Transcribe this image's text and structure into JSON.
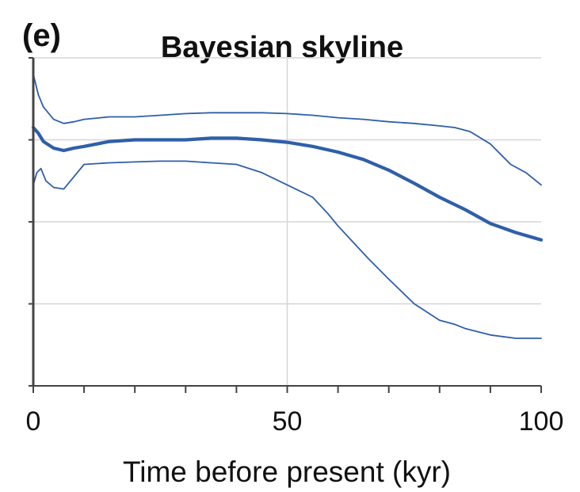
{
  "chart_data": {
    "type": "line",
    "panel_label": "(e)",
    "title": "Bayesian skyline",
    "xlabel": "Time before present (kyr)",
    "ylabel": "",
    "xlim": [
      0,
      100
    ],
    "ylim": [
      0,
      4
    ],
    "x_ticks": [
      0,
      50,
      100
    ],
    "x_minor_ticks": [
      10,
      20,
      30,
      40,
      60,
      70,
      80,
      90
    ],
    "y_ticks": [
      0,
      1,
      2,
      3,
      4
    ],
    "grid": true,
    "colors": {
      "series": "#2f5fa8",
      "grid": "#d6d6d6",
      "axis": "#444444"
    },
    "series": [
      {
        "role": "upper",
        "x": [
          0,
          1,
          2,
          4,
          6,
          8,
          10,
          15,
          20,
          25,
          30,
          35,
          40,
          45,
          50,
          55,
          60,
          65,
          70,
          75,
          80,
          83,
          86,
          90,
          94,
          97,
          100
        ],
        "y": [
          3.8,
          3.55,
          3.4,
          3.25,
          3.2,
          3.22,
          3.25,
          3.28,
          3.28,
          3.3,
          3.32,
          3.33,
          3.33,
          3.33,
          3.32,
          3.3,
          3.27,
          3.25,
          3.22,
          3.2,
          3.17,
          3.15,
          3.1,
          2.95,
          2.7,
          2.6,
          2.45
        ]
      },
      {
        "role": "median",
        "x": [
          0,
          1,
          2,
          4,
          6,
          8,
          10,
          15,
          20,
          25,
          30,
          35,
          40,
          45,
          50,
          55,
          60,
          65,
          70,
          75,
          80,
          85,
          90,
          95,
          100
        ],
        "y": [
          3.15,
          3.08,
          2.98,
          2.9,
          2.87,
          2.9,
          2.92,
          2.98,
          3.0,
          3.0,
          3.0,
          3.02,
          3.02,
          3.0,
          2.97,
          2.92,
          2.85,
          2.76,
          2.63,
          2.47,
          2.3,
          2.15,
          1.98,
          1.87,
          1.78
        ]
      },
      {
        "role": "lower",
        "x": [
          0,
          0.7,
          1.5,
          2.5,
          4,
          6,
          8,
          10,
          15,
          20,
          25,
          30,
          35,
          40,
          45,
          50,
          55,
          58,
          60,
          63,
          66,
          70,
          75,
          80,
          83,
          85,
          90,
          95,
          100
        ],
        "y": [
          2.45,
          2.6,
          2.65,
          2.5,
          2.42,
          2.4,
          2.55,
          2.7,
          2.72,
          2.73,
          2.74,
          2.74,
          2.72,
          2.7,
          2.6,
          2.45,
          2.3,
          2.1,
          1.95,
          1.75,
          1.55,
          1.3,
          1.0,
          0.8,
          0.75,
          0.7,
          0.62,
          0.58,
          0.58
        ]
      }
    ]
  }
}
